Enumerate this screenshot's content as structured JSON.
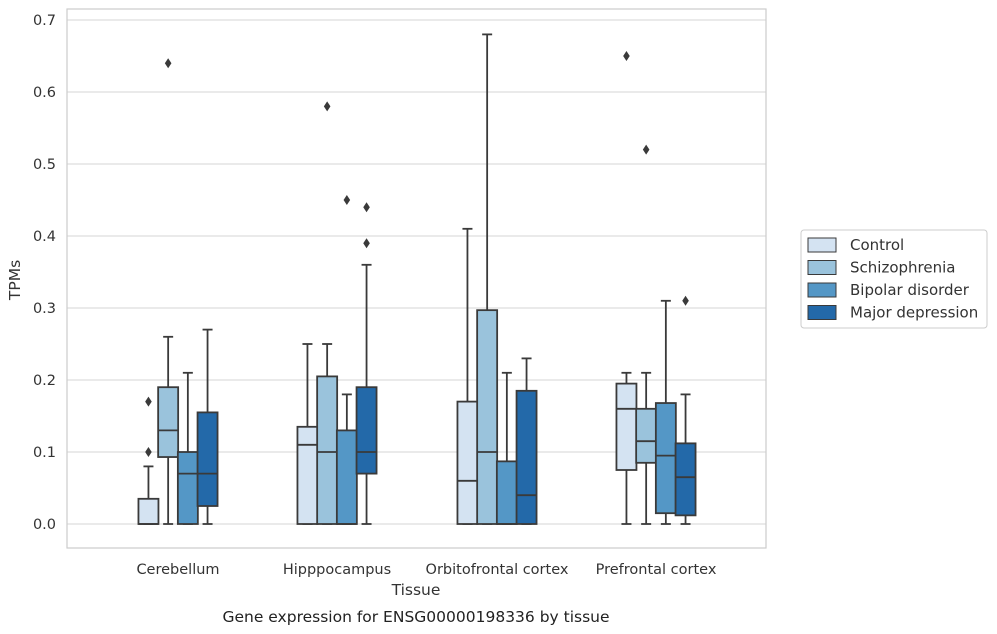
{
  "chart_data": {
    "type": "boxplot",
    "xlabel": "Tissue",
    "ylabel": "TPMs",
    "caption": "Gene expression for ENSG00000198336 by tissue",
    "ylim": [
      -0.033,
      0.715
    ],
    "yticks": [
      0.0,
      0.1,
      0.2,
      0.3,
      0.4,
      0.5,
      0.6,
      0.7
    ],
    "ytick_labels": [
      "0.0",
      "0.1",
      "0.2",
      "0.3",
      "0.4",
      "0.5",
      "0.6",
      "0.7"
    ],
    "grid": "horizontal",
    "legend_position": "right",
    "categories": [
      "Cerebellum",
      "Hipppocampus",
      "Orbitofrontal cortex",
      "Prefrontal cortex"
    ],
    "series": [
      {
        "name": "Control",
        "color": "#d4e3f2",
        "boxes": [
          {
            "whislo": 0.0,
            "q1": 0.0,
            "med": 0.0,
            "q3": 0.035,
            "whishi": 0.08,
            "fliers": [
              0.1,
              0.17
            ]
          },
          {
            "whislo": 0.0,
            "q1": 0.0,
            "med": 0.11,
            "q3": 0.135,
            "whishi": 0.25,
            "fliers": []
          },
          {
            "whislo": 0.0,
            "q1": 0.0,
            "med": 0.06,
            "q3": 0.17,
            "whishi": 0.41,
            "fliers": []
          },
          {
            "whislo": 0.0,
            "q1": 0.075,
            "med": 0.16,
            "q3": 0.195,
            "whishi": 0.21,
            "fliers": [
              0.65
            ]
          }
        ]
      },
      {
        "name": "Schizophrenia",
        "color": "#9ac3dc",
        "boxes": [
          {
            "whislo": 0.0,
            "q1": 0.093,
            "med": 0.13,
            "q3": 0.19,
            "whishi": 0.26,
            "fliers": [
              0.64
            ]
          },
          {
            "whislo": 0.0,
            "q1": 0.0,
            "med": 0.1,
            "q3": 0.205,
            "whishi": 0.25,
            "fliers": [
              0.58
            ]
          },
          {
            "whislo": 0.0,
            "q1": 0.0,
            "med": 0.1,
            "q3": 0.297,
            "whishi": 0.68,
            "fliers": []
          },
          {
            "whislo": 0.0,
            "q1": 0.085,
            "med": 0.115,
            "q3": 0.16,
            "whishi": 0.21,
            "fliers": [
              0.52
            ]
          }
        ]
      },
      {
        "name": "Bipolar disorder",
        "color": "#5497c6",
        "boxes": [
          {
            "whislo": 0.0,
            "q1": 0.0,
            "med": 0.07,
            "q3": 0.1,
            "whishi": 0.21,
            "fliers": []
          },
          {
            "whislo": 0.0,
            "q1": 0.0,
            "med": 0.0,
            "q3": 0.13,
            "whishi": 0.18,
            "fliers": [
              0.45
            ]
          },
          {
            "whislo": 0.0,
            "q1": 0.0,
            "med": 0.0,
            "q3": 0.087,
            "whishi": 0.21,
            "fliers": []
          },
          {
            "whislo": 0.0,
            "q1": 0.015,
            "med": 0.095,
            "q3": 0.168,
            "whishi": 0.31,
            "fliers": []
          }
        ]
      },
      {
        "name": "Major depression",
        "color": "#2369a9",
        "boxes": [
          {
            "whislo": 0.0,
            "q1": 0.025,
            "med": 0.07,
            "q3": 0.155,
            "whishi": 0.27,
            "fliers": []
          },
          {
            "whislo": 0.0,
            "q1": 0.07,
            "med": 0.1,
            "q3": 0.19,
            "whishi": 0.36,
            "fliers": [
              0.39,
              0.44
            ]
          },
          {
            "whislo": 0.0,
            "q1": 0.0,
            "med": 0.04,
            "q3": 0.185,
            "whishi": 0.23,
            "fliers": []
          },
          {
            "whislo": 0.0,
            "q1": 0.012,
            "med": 0.065,
            "q3": 0.112,
            "whishi": 0.18,
            "fliers": [
              0.31
            ]
          }
        ]
      }
    ]
  }
}
